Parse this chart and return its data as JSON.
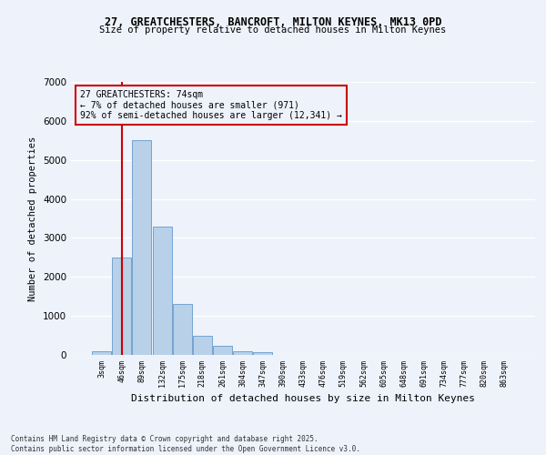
{
  "title_line1": "27, GREATCHESTERS, BANCROFT, MILTON KEYNES, MK13 0PD",
  "title_line2": "Size of property relative to detached houses in Milton Keynes",
  "xlabel": "Distribution of detached houses by size in Milton Keynes",
  "ylabel": "Number of detached properties",
  "categories": [
    "3sqm",
    "46sqm",
    "89sqm",
    "132sqm",
    "175sqm",
    "218sqm",
    "261sqm",
    "304sqm",
    "347sqm",
    "390sqm",
    "433sqm",
    "476sqm",
    "519sqm",
    "562sqm",
    "605sqm",
    "648sqm",
    "691sqm",
    "734sqm",
    "777sqm",
    "820sqm",
    "863sqm"
  ],
  "values": [
    100,
    2500,
    5500,
    3300,
    1300,
    480,
    230,
    100,
    60,
    0,
    0,
    0,
    0,
    0,
    0,
    0,
    0,
    0,
    0,
    0,
    0
  ],
  "bar_color": "#b8d0e8",
  "bar_edge_color": "#6699cc",
  "vline_color": "#cc0000",
  "annotation_title": "27 GREATCHESTERS: 74sqm",
  "annotation_line2": "← 7% of detached houses are smaller (971)",
  "annotation_line3": "92% of semi-detached houses are larger (12,341) →",
  "annotation_box_edge": "#cc0000",
  "ylim": [
    0,
    7000
  ],
  "yticks": [
    0,
    1000,
    2000,
    3000,
    4000,
    5000,
    6000,
    7000
  ],
  "background_color": "#eef2fb",
  "grid_color": "#ffffff",
  "footer_line1": "Contains HM Land Registry data © Crown copyright and database right 2025.",
  "footer_line2": "Contains public sector information licensed under the Open Government Licence v3.0."
}
